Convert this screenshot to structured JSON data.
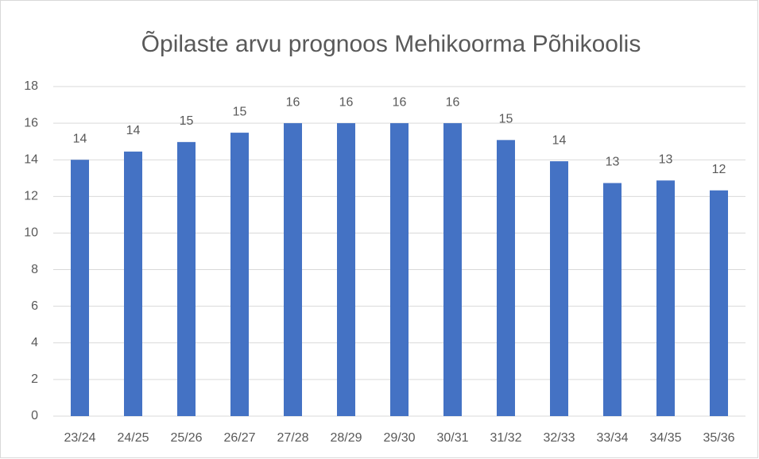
{
  "chart_data": {
    "type": "bar",
    "title": "Õpilaste arvu prognoos Mehikoorma Põhikoolis",
    "categories": [
      "23/24",
      "24/25",
      "25/26",
      "26/27",
      "27/28",
      "28/29",
      "29/30",
      "30/31",
      "31/32",
      "32/33",
      "33/34",
      "34/35",
      "35/36"
    ],
    "values": [
      14,
      14.45,
      14.97,
      15.48,
      16,
      16,
      16,
      16,
      15.08,
      13.92,
      12.73,
      12.87,
      12.33
    ],
    "value_labels": [
      "14",
      "14",
      "15",
      "15",
      "16",
      "16",
      "16",
      "16",
      "15",
      "14",
      "13",
      "13",
      "12"
    ],
    "color": "#4472c4",
    "ylim": [
      0,
      18
    ],
    "yticks": [
      0,
      2,
      4,
      6,
      8,
      10,
      12,
      14,
      16,
      18
    ],
    "grid": true
  }
}
